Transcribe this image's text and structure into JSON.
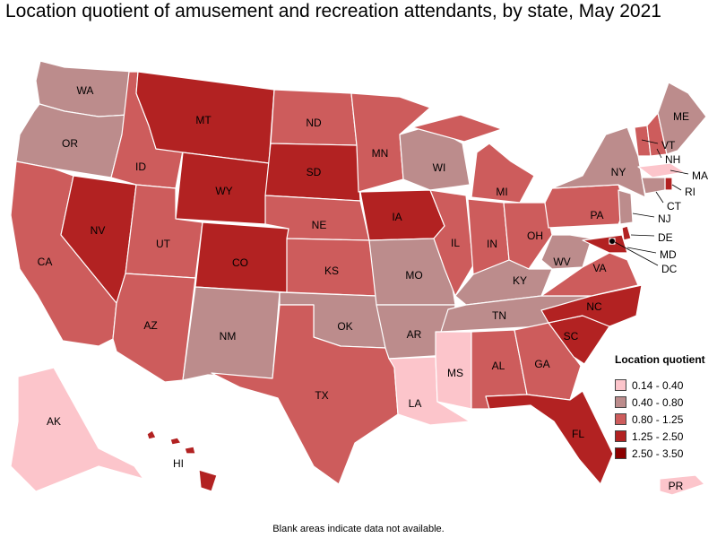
{
  "title": "Location quotient of amusement and recreation attendants, by state, May 2021",
  "note": "Blank areas indicate data not available.",
  "legend": {
    "title": "Location quotient",
    "items": [
      {
        "label": "0.14 - 0.40",
        "color": "#fcc5cb"
      },
      {
        "label": "0.40 - 0.80",
        "color": "#bc8c8c"
      },
      {
        "label": "0.80 - 1.25",
        "color": "#cd5c5c"
      },
      {
        "label": "1.25 - 2.50",
        "color": "#b22222"
      },
      {
        "label": "2.50 - 3.50",
        "color": "#8b0000"
      }
    ]
  },
  "states": [
    {
      "abbr": "WA",
      "class": 1
    },
    {
      "abbr": "OR",
      "class": 1
    },
    {
      "abbr": "CA",
      "class": 2
    },
    {
      "abbr": "NV",
      "class": 3
    },
    {
      "abbr": "ID",
      "class": 2
    },
    {
      "abbr": "MT",
      "class": 3
    },
    {
      "abbr": "WY",
      "class": 3
    },
    {
      "abbr": "UT",
      "class": 2
    },
    {
      "abbr": "AZ",
      "class": 2
    },
    {
      "abbr": "CO",
      "class": 3
    },
    {
      "abbr": "NM",
      "class": 1
    },
    {
      "abbr": "ND",
      "class": 2
    },
    {
      "abbr": "SD",
      "class": 3
    },
    {
      "abbr": "NE",
      "class": 2
    },
    {
      "abbr": "KS",
      "class": 2
    },
    {
      "abbr": "OK",
      "class": 1
    },
    {
      "abbr": "TX",
      "class": 2
    },
    {
      "abbr": "MN",
      "class": 2
    },
    {
      "abbr": "IA",
      "class": 3
    },
    {
      "abbr": "MO",
      "class": 1
    },
    {
      "abbr": "AR",
      "class": 1
    },
    {
      "abbr": "LA",
      "class": 0
    },
    {
      "abbr": "WI",
      "class": 1
    },
    {
      "abbr": "IL",
      "class": 2
    },
    {
      "abbr": "MI",
      "class": 2
    },
    {
      "abbr": "IN",
      "class": 2
    },
    {
      "abbr": "OH",
      "class": 2
    },
    {
      "abbr": "KY",
      "class": 1
    },
    {
      "abbr": "TN",
      "class": 1
    },
    {
      "abbr": "MS",
      "class": 0
    },
    {
      "abbr": "AL",
      "class": 2
    },
    {
      "abbr": "GA",
      "class": 2
    },
    {
      "abbr": "FL",
      "class": 3
    },
    {
      "abbr": "SC",
      "class": 3
    },
    {
      "abbr": "NC",
      "class": 3
    },
    {
      "abbr": "VA",
      "class": 2
    },
    {
      "abbr": "WV",
      "class": 1
    },
    {
      "abbr": "PA",
      "class": 2
    },
    {
      "abbr": "NY",
      "class": 1
    },
    {
      "abbr": "VT",
      "class": 2
    },
    {
      "abbr": "NH",
      "class": 2
    },
    {
      "abbr": "ME",
      "class": 1
    },
    {
      "abbr": "MA",
      "class": 0
    },
    {
      "abbr": "RI",
      "class": 3
    },
    {
      "abbr": "CT",
      "class": 1
    },
    {
      "abbr": "NJ",
      "class": 1
    },
    {
      "abbr": "DE",
      "class": 3
    },
    {
      "abbr": "MD",
      "class": 3
    },
    {
      "abbr": "DC",
      "class": 4
    },
    {
      "abbr": "AK",
      "class": 0
    },
    {
      "abbr": "HI",
      "class": 3
    },
    {
      "abbr": "PR",
      "class": 0
    }
  ]
}
